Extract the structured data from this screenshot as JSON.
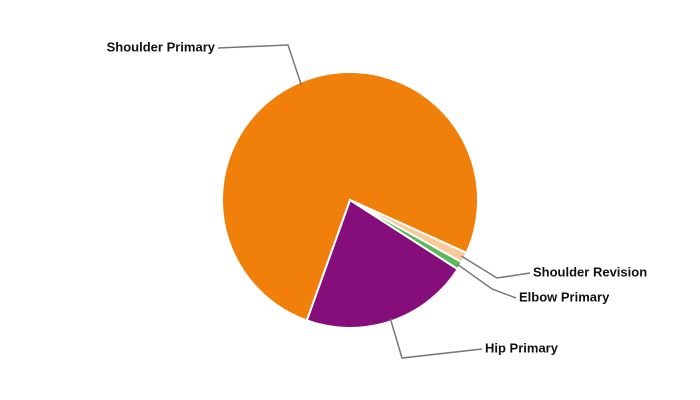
{
  "chart_data": {
    "type": "pie",
    "categories": [
      "Hip Primary",
      "Shoulder Primary",
      "Shoulder Revision",
      "Elbow Primary"
    ],
    "values": [
      21.4,
      76.3,
      1.3,
      1.0
    ],
    "colors": [
      "#850e7a",
      "#f0800a",
      "#f9c999",
      "#5cb85c"
    ]
  }
}
